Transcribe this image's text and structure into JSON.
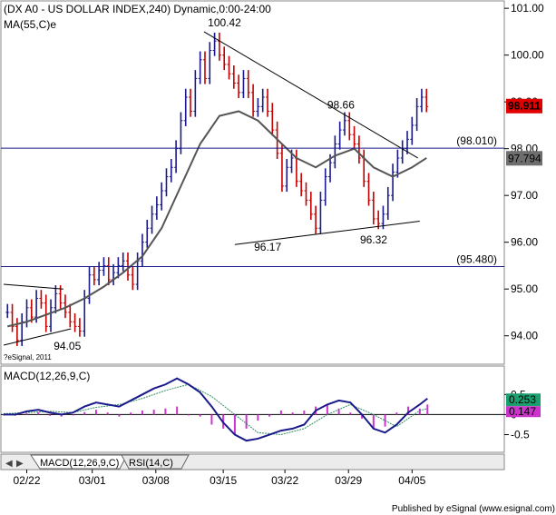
{
  "colors": {
    "up_bar": "#1a1a8c",
    "down_bar": "#c40000",
    "ma_line": "#555555",
    "hline": "#1a1a8c",
    "macd_line": "#1a1a8c",
    "signal_line": "#2f8f5f",
    "histogram": "#cc33cc",
    "last_price_tag": "#e00000",
    "ma_tag": "#6e6e6e",
    "macd_tag": "#1aa06e",
    "signal_tag": "#cc33cc"
  },
  "chart_data": [
    {
      "type": "line",
      "title": "(DX A0 - US DOLLAR INDEX,240) Dynamic,0:00-24:00",
      "subtitle": "MA(55,C)e",
      "x_ticks": [
        "02/22",
        "03/01",
        "03/08",
        "03/15",
        "03/22",
        "03/29",
        "04/05"
      ],
      "y_ticks": [
        "101.00",
        "100.00",
        "99.00",
        "98.00",
        "97.00",
        "96.00",
        "95.00",
        "94.00"
      ],
      "ylim": [
        93.8,
        101.1
      ],
      "horizontal_lines": [
        {
          "value": 98.01,
          "label": "(98.010)"
        },
        {
          "value": 95.48,
          "label": "(95.480)"
        }
      ],
      "annotations": [
        {
          "text": "100.42",
          "value": 100.42
        },
        {
          "text": "98.66",
          "value": 98.66
        },
        {
          "text": "96.17",
          "value": 96.17
        },
        {
          "text": "96.32",
          "value": 96.32
        },
        {
          "text": "94.05",
          "value": 94.05
        }
      ],
      "last_price": {
        "value": 98.911,
        "label": "98.911"
      },
      "ma_value": {
        "value": 97.794,
        "label": "97.794"
      },
      "watermark": "?eSignal, 2011",
      "series": [
        {
          "type": "ohlc",
          "values": [
            [
              0.2,
              94.5
            ],
            [
              0.45,
              94.2
            ],
            [
              0.7,
              93.9
            ],
            [
              0.95,
              94.3
            ],
            [
              1.2,
              94.6
            ],
            [
              1.45,
              94.4
            ],
            [
              1.7,
              94.8
            ],
            [
              1.95,
              94.7
            ],
            [
              2.2,
              94.2
            ],
            [
              2.45,
              94.6
            ],
            [
              2.7,
              94.9
            ],
            [
              2.95,
              94.7
            ],
            [
              3.2,
              94.5
            ],
            [
              3.45,
              94.3
            ],
            [
              3.7,
              94.2
            ],
            [
              3.95,
              94.1
            ],
            [
              4.2,
              94.8
            ],
            [
              4.45,
              95.3
            ],
            [
              4.7,
              95.2
            ],
            [
              4.95,
              95.4
            ],
            [
              5.2,
              95.5
            ],
            [
              5.45,
              95.2
            ],
            [
              5.7,
              95.35
            ],
            [
              5.95,
              95.5
            ],
            [
              6.2,
              95.6
            ],
            [
              6.45,
              95.3
            ],
            [
              6.7,
              95.1
            ],
            [
              6.95,
              95.6
            ],
            [
              7.2,
              96.0
            ],
            [
              7.45,
              96.3
            ],
            [
              7.7,
              96.6
            ],
            [
              7.95,
              96.8
            ],
            [
              8.2,
              97.1
            ],
            [
              8.45,
              97.4
            ],
            [
              8.7,
              97.6
            ],
            [
              8.95,
              98.0
            ],
            [
              9.2,
              98.6
            ],
            [
              9.45,
              99.1
            ],
            [
              9.7,
              98.8
            ],
            [
              9.95,
              99.5
            ],
            [
              10.2,
              99.9
            ],
            [
              10.45,
              99.5
            ],
            [
              10.7,
              100.1
            ],
            [
              10.95,
              100.3
            ],
            [
              11.2,
              100.0
            ],
            [
              11.45,
              99.8
            ],
            [
              11.7,
              99.6
            ],
            [
              11.95,
              99.4
            ],
            [
              12.2,
              99.2
            ],
            [
              12.45,
              99.5
            ],
            [
              12.7,
              99.2
            ],
            [
              12.95,
              98.8
            ],
            [
              13.2,
              98.9
            ],
            [
              13.45,
              99.1
            ],
            [
              13.7,
              98.8
            ],
            [
              13.95,
              98.4
            ],
            [
              14.2,
              97.9
            ],
            [
              14.45,
              97.2
            ],
            [
              14.7,
              97.6
            ],
            [
              14.95,
              97.8
            ],
            [
              15.2,
              97.3
            ],
            [
              15.45,
              97.1
            ],
            [
              15.7,
              96.9
            ],
            [
              15.95,
              96.6
            ],
            [
              16.2,
              96.3
            ],
            [
              16.45,
              96.9
            ],
            [
              16.7,
              97.4
            ],
            [
              16.95,
              97.7
            ],
            [
              17.2,
              98.1
            ],
            [
              17.45,
              98.4
            ],
            [
              17.7,
              98.6
            ],
            [
              17.95,
              98.3
            ],
            [
              18.2,
              98.1
            ],
            [
              18.45,
              97.8
            ],
            [
              18.7,
              97.3
            ],
            [
              18.95,
              96.9
            ],
            [
              19.2,
              96.5
            ],
            [
              19.45,
              96.4
            ],
            [
              19.7,
              96.6
            ],
            [
              19.95,
              97.0
            ],
            [
              20.2,
              97.5
            ],
            [
              20.45,
              97.8
            ],
            [
              20.7,
              98.0
            ],
            [
              20.95,
              98.2
            ],
            [
              21.2,
              98.5
            ],
            [
              21.45,
              98.9
            ],
            [
              21.7,
              99.1
            ],
            [
              21.95,
              98.9
            ]
          ]
        },
        {
          "type": "line",
          "values": [
            [
              0.2,
              94.2
            ],
            [
              1.2,
              94.3
            ],
            [
              2.2,
              94.45
            ],
            [
              3.2,
              94.6
            ],
            [
              4.2,
              94.8
            ],
            [
              5.2,
              95.05
            ],
            [
              6.2,
              95.35
            ],
            [
              7.2,
              95.7
            ],
            [
              8.2,
              96.3
            ],
            [
              9.2,
              97.2
            ],
            [
              10.2,
              98.1
            ],
            [
              11.2,
              98.7
            ],
            [
              12.2,
              98.8
            ],
            [
              13.2,
              98.6
            ],
            [
              14.2,
              98.2
            ],
            [
              15.2,
              97.8
            ],
            [
              16.2,
              97.6
            ],
            [
              17.2,
              97.85
            ],
            [
              18.2,
              98.0
            ],
            [
              19.2,
              97.6
            ],
            [
              20.2,
              97.4
            ],
            [
              21.2,
              97.6
            ],
            [
              21.95,
              97.8
            ]
          ]
        }
      ],
      "trendlines": [
        {
          "from": [
            10.4,
            100.5
          ],
          "to": [
            21.5,
            97.8
          ]
        },
        {
          "from": [
            12.0,
            95.95
          ],
          "to": [
            21.6,
            96.45
          ]
        },
        {
          "from": [
            0.0,
            95.1
          ],
          "to": [
            3.1,
            95.0
          ]
        },
        {
          "from": [
            0.0,
            93.8
          ],
          "to": [
            3.5,
            94.15
          ]
        }
      ],
      "xlim": [
        0,
        22.5
      ]
    },
    {
      "type": "line",
      "title": "MACD(12,26,9,C)",
      "y_ticks": [
        "0.5",
        "0",
        "-0.5"
      ],
      "ylim": [
        -0.85,
        1.05
      ],
      "macd_value": {
        "value": 0.253,
        "label": "0.253"
      },
      "signal_value": {
        "value": 0.147,
        "label": "0.147"
      },
      "series": [
        {
          "type": "line",
          "values": [
            [
              0.0,
              0.0
            ],
            [
              0.6,
              0.0
            ],
            [
              1.2,
              0.08
            ],
            [
              1.8,
              0.12
            ],
            [
              2.4,
              0.05
            ],
            [
              3.0,
              0.0
            ],
            [
              3.6,
              0.05
            ],
            [
              4.2,
              0.2
            ],
            [
              4.8,
              0.3
            ],
            [
              5.4,
              0.25
            ],
            [
              6.0,
              0.2
            ],
            [
              6.6,
              0.35
            ],
            [
              7.2,
              0.5
            ],
            [
              7.8,
              0.65
            ],
            [
              8.4,
              0.75
            ],
            [
              9.0,
              0.9
            ],
            [
              9.6,
              0.75
            ],
            [
              10.2,
              0.55
            ],
            [
              10.8,
              0.2
            ],
            [
              11.4,
              -0.2
            ],
            [
              12.0,
              -0.5
            ],
            [
              12.6,
              -0.65
            ],
            [
              13.2,
              -0.6
            ],
            [
              13.8,
              -0.5
            ],
            [
              14.4,
              -0.4
            ],
            [
              15.0,
              -0.35
            ],
            [
              15.6,
              -0.25
            ],
            [
              16.2,
              0.1
            ],
            [
              16.8,
              0.25
            ],
            [
              17.4,
              0.35
            ],
            [
              18.0,
              0.3
            ],
            [
              18.6,
              0.0
            ],
            [
              19.2,
              -0.35
            ],
            [
              19.8,
              -0.45
            ],
            [
              20.4,
              -0.25
            ],
            [
              21.0,
              0.05
            ],
            [
              21.6,
              0.25
            ],
            [
              22.0,
              0.4
            ]
          ]
        },
        {
          "type": "line",
          "values": [
            [
              0.0,
              0.02
            ],
            [
              1.2,
              0.05
            ],
            [
              2.4,
              0.08
            ],
            [
              3.6,
              0.05
            ],
            [
              4.8,
              0.18
            ],
            [
              6.0,
              0.25
            ],
            [
              7.2,
              0.4
            ],
            [
              8.4,
              0.6
            ],
            [
              9.6,
              0.75
            ],
            [
              10.8,
              0.45
            ],
            [
              12.0,
              0.0
            ],
            [
              13.2,
              -0.45
            ],
            [
              14.4,
              -0.5
            ],
            [
              15.6,
              -0.35
            ],
            [
              16.8,
              0.0
            ],
            [
              18.0,
              0.25
            ],
            [
              19.2,
              0.0
            ],
            [
              20.4,
              -0.3
            ],
            [
              21.6,
              0.1
            ],
            [
              22.0,
              0.15
            ]
          ]
        },
        {
          "type": "bar",
          "values": [
            [
              0.0,
              -0.02
            ],
            [
              0.6,
              -0.03
            ],
            [
              1.2,
              0.03
            ],
            [
              1.8,
              0.06
            ],
            [
              2.4,
              -0.03
            ],
            [
              3.0,
              -0.05
            ],
            [
              3.6,
              0.0
            ],
            [
              4.2,
              0.06
            ],
            [
              4.8,
              0.12
            ],
            [
              5.4,
              0.05
            ],
            [
              6.0,
              -0.05
            ],
            [
              6.6,
              0.05
            ],
            [
              7.2,
              0.1
            ],
            [
              7.8,
              0.12
            ],
            [
              8.4,
              0.15
            ],
            [
              9.0,
              0.2
            ],
            [
              9.6,
              0.0
            ],
            [
              10.2,
              -0.05
            ],
            [
              10.8,
              -0.25
            ],
            [
              11.4,
              -0.35
            ],
            [
              12.0,
              -0.5
            ],
            [
              12.6,
              -0.35
            ],
            [
              13.2,
              -0.15
            ],
            [
              13.8,
              -0.05
            ],
            [
              14.4,
              0.1
            ],
            [
              15.0,
              0.05
            ],
            [
              15.6,
              0.1
            ],
            [
              16.2,
              0.2
            ],
            [
              16.8,
              0.25
            ],
            [
              17.4,
              0.15
            ],
            [
              18.0,
              0.05
            ],
            [
              18.6,
              -0.1
            ],
            [
              19.2,
              -0.35
            ],
            [
              19.8,
              -0.3
            ],
            [
              20.4,
              0.05
            ],
            [
              21.0,
              0.2
            ],
            [
              21.6,
              0.15
            ],
            [
              22.0,
              0.25
            ]
          ]
        }
      ],
      "xlim": [
        0,
        22.5
      ]
    }
  ],
  "tabs": [
    "MACD(12,26,9,C)",
    "RSI(14,C)"
  ],
  "footer": "Published by eSignal (www.esignal.com)"
}
